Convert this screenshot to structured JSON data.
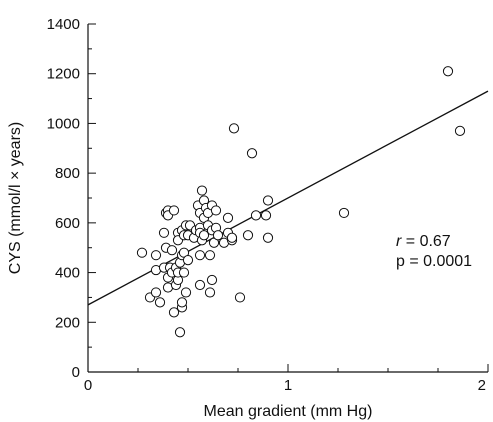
{
  "chart_data": {
    "type": "scatter",
    "title": "",
    "xlabel": "Mean gradient (mm Hg)",
    "ylabel": "CYS (mmol/l × years)",
    "xlim": [
      0,
      2
    ],
    "ylim": [
      0,
      1400
    ],
    "x_ticks": [
      0,
      1,
      2
    ],
    "x_tick_labels": [
      "0",
      "1",
      "2"
    ],
    "x_minor_step": 0.25,
    "y_ticks": [
      0,
      200,
      400,
      600,
      800,
      1000,
      1200,
      1400
    ],
    "y_tick_labels": [
      "0",
      "200",
      "400",
      "600",
      "800",
      "1000",
      "1200",
      "1400"
    ],
    "y_minor_step": 100,
    "grid": false,
    "annotations": {
      "r_symbol": "r",
      "r_value": " = 0.67",
      "p_text": "p = 0.0001"
    },
    "regression_line": {
      "intercept": 270,
      "slope": 430
    },
    "points": [
      [
        0.27,
        480
      ],
      [
        0.31,
        300
      ],
      [
        0.34,
        320
      ],
      [
        0.34,
        410
      ],
      [
        0.34,
        470
      ],
      [
        0.36,
        280
      ],
      [
        0.38,
        420
      ],
      [
        0.38,
        560
      ],
      [
        0.39,
        500
      ],
      [
        0.39,
        640
      ],
      [
        0.4,
        380
      ],
      [
        0.4,
        340
      ],
      [
        0.4,
        650
      ],
      [
        0.4,
        630
      ],
      [
        0.41,
        420
      ],
      [
        0.42,
        400
      ],
      [
        0.42,
        490
      ],
      [
        0.43,
        650
      ],
      [
        0.43,
        240
      ],
      [
        0.44,
        350
      ],
      [
        0.44,
        420
      ],
      [
        0.45,
        560
      ],
      [
        0.45,
        370
      ],
      [
        0.45,
        530
      ],
      [
        0.45,
        400
      ],
      [
        0.46,
        160
      ],
      [
        0.46,
        440
      ],
      [
        0.47,
        260
      ],
      [
        0.47,
        280
      ],
      [
        0.47,
        470
      ],
      [
        0.47,
        570
      ],
      [
        0.48,
        400
      ],
      [
        0.48,
        480
      ],
      [
        0.48,
        550
      ],
      [
        0.49,
        320
      ],
      [
        0.49,
        590
      ],
      [
        0.5,
        550
      ],
      [
        0.5,
        450
      ],
      [
        0.51,
        590
      ],
      [
        0.53,
        540
      ],
      [
        0.54,
        570
      ],
      [
        0.55,
        670
      ],
      [
        0.56,
        580
      ],
      [
        0.56,
        640
      ],
      [
        0.56,
        350
      ],
      [
        0.56,
        470
      ],
      [
        0.56,
        560
      ],
      [
        0.57,
        730
      ],
      [
        0.57,
        530
      ],
      [
        0.58,
        690
      ],
      [
        0.58,
        620
      ],
      [
        0.58,
        550
      ],
      [
        0.59,
        660
      ],
      [
        0.6,
        590
      ],
      [
        0.6,
        640
      ],
      [
        0.61,
        470
      ],
      [
        0.61,
        320
      ],
      [
        0.62,
        570
      ],
      [
        0.62,
        370
      ],
      [
        0.62,
        670
      ],
      [
        0.63,
        520
      ],
      [
        0.64,
        650
      ],
      [
        0.64,
        580
      ],
      [
        0.65,
        550
      ],
      [
        0.68,
        520
      ],
      [
        0.7,
        560
      ],
      [
        0.7,
        620
      ],
      [
        0.72,
        530
      ],
      [
        0.72,
        540
      ],
      [
        0.73,
        980
      ],
      [
        0.76,
        300
      ],
      [
        0.8,
        550
      ],
      [
        0.82,
        880
      ],
      [
        0.84,
        630
      ],
      [
        0.89,
        630
      ],
      [
        0.9,
        690
      ],
      [
        0.9,
        540
      ],
      [
        1.28,
        640
      ],
      [
        1.8,
        1210
      ],
      [
        1.86,
        970
      ]
    ],
    "colors": {
      "marker_fill": "#ffffff",
      "marker_stroke": "#111111",
      "line": "#111111"
    }
  }
}
